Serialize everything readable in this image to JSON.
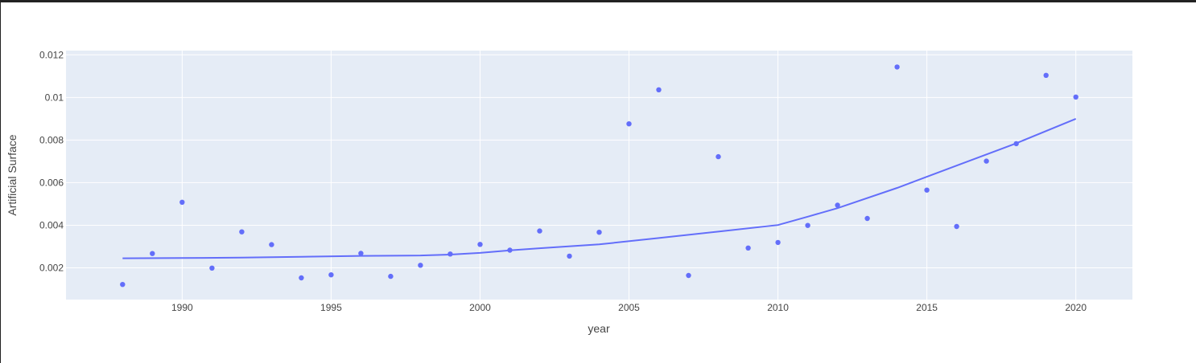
{
  "chart_data": {
    "type": "scatter",
    "xlabel": "year",
    "ylabel": "Artificial Surface",
    "xlim": [
      1986.1,
      2021.9
    ],
    "ylim": [
      0.00051,
      0.0122
    ],
    "x_ticks": [
      1990,
      1995,
      2000,
      2005,
      2010,
      2015,
      2020
    ],
    "y_ticks": [
      0.002,
      0.004,
      0.006,
      0.008,
      0.01,
      0.012
    ],
    "y_tick_labels": [
      "0.002",
      "0.004",
      "0.006",
      "0.008",
      "0.01",
      "0.012"
    ],
    "grid": true,
    "colors": {
      "marker": "#636efa",
      "plot_bg": "#e5ecf6",
      "grid": "#ffffff"
    },
    "series": [
      {
        "mode": "markers",
        "x": [
          1988,
          1989,
          1990,
          1991,
          1992,
          1993,
          1994,
          1995,
          1996,
          1997,
          1998,
          1999,
          2000,
          2001,
          2002,
          2003,
          2004,
          2005,
          2006,
          2007,
          2008,
          2009,
          2010,
          2011,
          2012,
          2013,
          2014,
          2015,
          2016,
          2017,
          2018,
          2019,
          2020
        ],
        "y": [
          0.00122,
          0.00267,
          0.00508,
          0.00199,
          0.00369,
          0.00309,
          0.00153,
          0.00167,
          0.00268,
          0.0016,
          0.00212,
          0.00265,
          0.0031,
          0.00283,
          0.00373,
          0.00255,
          0.00367,
          0.00876,
          0.01036,
          0.00164,
          0.00722,
          0.00293,
          0.00319,
          0.00399,
          0.00494,
          0.00432,
          0.01143,
          0.00565,
          0.00394,
          0.00701,
          0.00783,
          0.01104,
          0.01002
        ]
      },
      {
        "mode": "lines",
        "x": [
          1988,
          1990,
          1992,
          1994,
          1996,
          1998,
          1999,
          2000,
          2001,
          2002,
          2004,
          2006,
          2008,
          2010,
          2011,
          2012,
          2014,
          2016,
          2018,
          2020
        ],
        "y": [
          0.00245,
          0.00246,
          0.00248,
          0.00252,
          0.00256,
          0.00258,
          0.00262,
          0.0027,
          0.00282,
          0.00292,
          0.0031,
          0.0034,
          0.0037,
          0.00401,
          0.0044,
          0.0048,
          0.00575,
          0.0068,
          0.00785,
          0.009
        ]
      }
    ]
  }
}
